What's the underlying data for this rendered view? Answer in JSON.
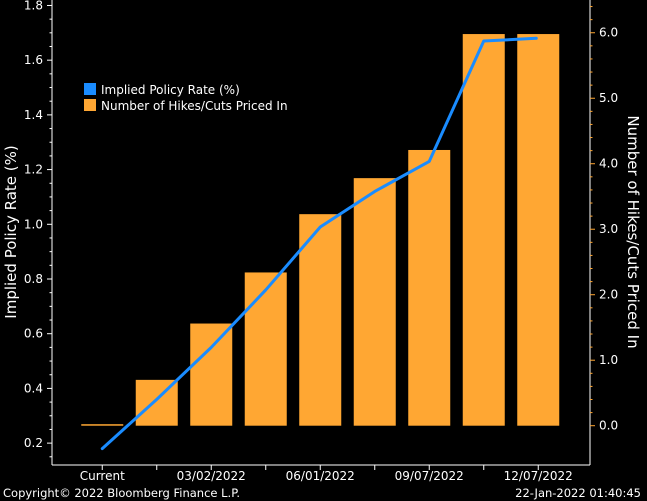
{
  "chart_data": {
    "type": "bar",
    "categories": [
      "Current",
      "",
      "03/02/2022",
      "",
      "06/01/2022",
      "",
      "09/07/2022",
      "",
      "12/07/2022"
    ],
    "x_tick_labels": [
      "Current",
      "03/02/2022",
      "06/01/2022",
      "09/07/2022",
      "12/07/2022"
    ],
    "series": [
      {
        "name": "Implied Policy Rate (%)",
        "type": "line",
        "axis": "left",
        "color": "#1a8cff",
        "values": [
          0.18,
          0.36,
          0.55,
          0.76,
          0.99,
          1.12,
          1.23,
          1.67,
          1.68
        ]
      },
      {
        "name": "Number of Hikes/Cuts Priced In",
        "type": "bar",
        "axis": "right",
        "color": "#ffa733",
        "values": [
          0.0,
          0.7,
          1.56,
          2.34,
          3.23,
          3.78,
          4.21,
          5.98,
          5.98
        ]
      }
    ],
    "ylabel": "Implied Policy Rate (%)",
    "ylim": [
      0.12,
      1.82
    ],
    "yticks": [
      0.2,
      0.4,
      0.6,
      0.8,
      1.0,
      1.2,
      1.4,
      1.6,
      1.8
    ],
    "y2label": "Number of Hikes/Cuts Priced In",
    "y2lim": [
      -0.6,
      6.5
    ],
    "y2ticks": [
      0.0,
      1.0,
      2.0,
      3.0,
      4.0,
      5.0,
      6.0
    ],
    "legend_position": "top-left",
    "grid": false
  },
  "footer": {
    "copyright": "Copyright© 2022 Bloomberg Finance L.P.",
    "timestamp": "22-Jan-2022 01:40:45"
  },
  "colors": {
    "background": "#000000",
    "axis": "#ffffff",
    "right_axis": "#ffa733",
    "bars": "#ffa733",
    "line": "#1a8cff"
  }
}
